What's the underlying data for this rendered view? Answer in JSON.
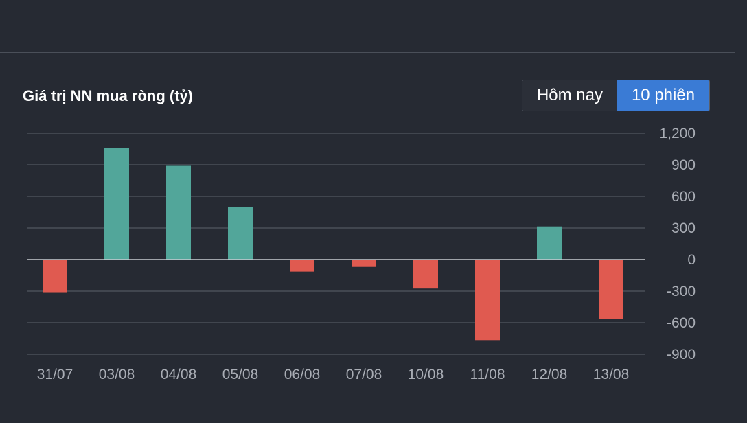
{
  "title": "Giá trị NN mua ròng (tỷ)",
  "toggle": {
    "option_today": "Hôm nay",
    "option_10": "10 phiên",
    "selected": "10 phiên"
  },
  "colors": {
    "positive": "#52a69a",
    "negative": "#e05a50",
    "background": "#262a33",
    "grid": "#4a4f59",
    "selected_toggle": "#3a7bd5"
  },
  "chart_data": {
    "type": "bar",
    "title": "Giá trị NN mua ròng (tỷ)",
    "categories": [
      "31/07",
      "03/08",
      "04/08",
      "05/08",
      "06/08",
      "07/08",
      "10/08",
      "11/08",
      "12/08",
      "13/08"
    ],
    "values": [
      -310,
      1060,
      890,
      500,
      -115,
      -70,
      -275,
      -765,
      315,
      -565
    ],
    "yticks": [
      1200,
      900,
      600,
      300,
      0,
      -300,
      -600,
      -900
    ],
    "ytick_labels": [
      "1,200",
      "900",
      "600",
      "300",
      "0",
      "-300",
      "-600",
      "-900"
    ],
    "ylim": [
      -900,
      1200
    ],
    "grid": true,
    "y_axis_position": "right"
  }
}
